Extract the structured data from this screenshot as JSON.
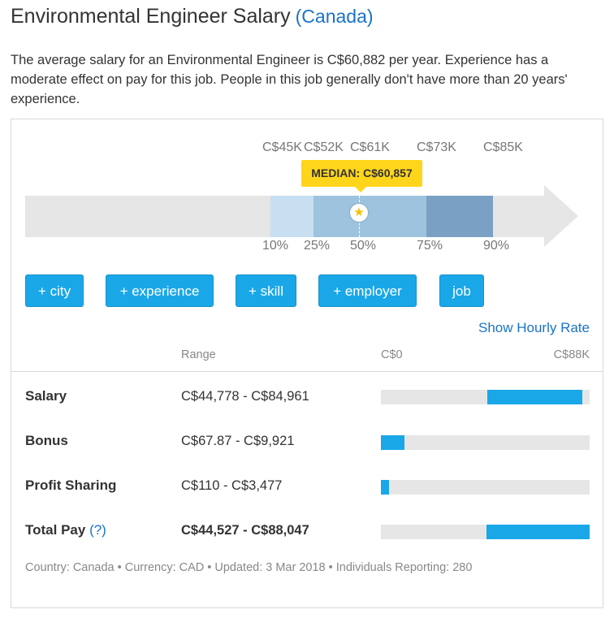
{
  "page": {
    "title": "Environmental Engineer Salary",
    "country_link": "(Canada)",
    "intro": "The average salary for an Environmental Engineer is C$60,882 per year. Experience has a moderate effect on pay for this job. People in this job generally don't have more than 20 years' experience."
  },
  "distribution": {
    "tick_labels": [
      "C$45K",
      "C$52K",
      "C$61K",
      "C$73K",
      "C$85K"
    ],
    "percentiles": [
      "10%",
      "25%",
      "50%",
      "75%",
      "90%"
    ],
    "median_label": "MEDIAN: C$60,857",
    "colors": {
      "track": "#e6e6e6",
      "p10_25": "#c7dff0",
      "p25_75": "#9ec3de",
      "p75_90": "#7aa1c3",
      "median": "#ffd51b"
    }
  },
  "filters": [
    {
      "label": "+ city"
    },
    {
      "label": "+ experience"
    },
    {
      "label": "+ skill"
    },
    {
      "label": "+ employer"
    },
    {
      "label": "job"
    }
  ],
  "show_hourly": "Show Hourly Rate",
  "table": {
    "range_header": "Range",
    "scale_min": "C$0",
    "scale_max": "C$88K",
    "rows": [
      {
        "label": "Salary",
        "range": "C$44,778 - C$84,961",
        "bar_start_pct": 50.9,
        "bar_end_pct": 96.5
      },
      {
        "label": "Bonus",
        "range": "C$67.87 - C$9,921",
        "bar_start_pct": 0.1,
        "bar_end_pct": 11.3
      },
      {
        "label": "Profit Sharing",
        "range": "C$110 - C$3,477",
        "bar_start_pct": 0.1,
        "bar_end_pct": 4.0
      },
      {
        "label": "Total Pay",
        "help": "(?)",
        "range": "C$44,527 - C$88,047",
        "bar_start_pct": 50.6,
        "bar_end_pct": 100
      }
    ]
  },
  "footer": "Country: Canada • Currency: CAD • Updated: 3 Mar 2018 • Individuals Reporting: 280",
  "accent_colors": {
    "button": "#1aa7e8",
    "link": "#1a73c8"
  }
}
